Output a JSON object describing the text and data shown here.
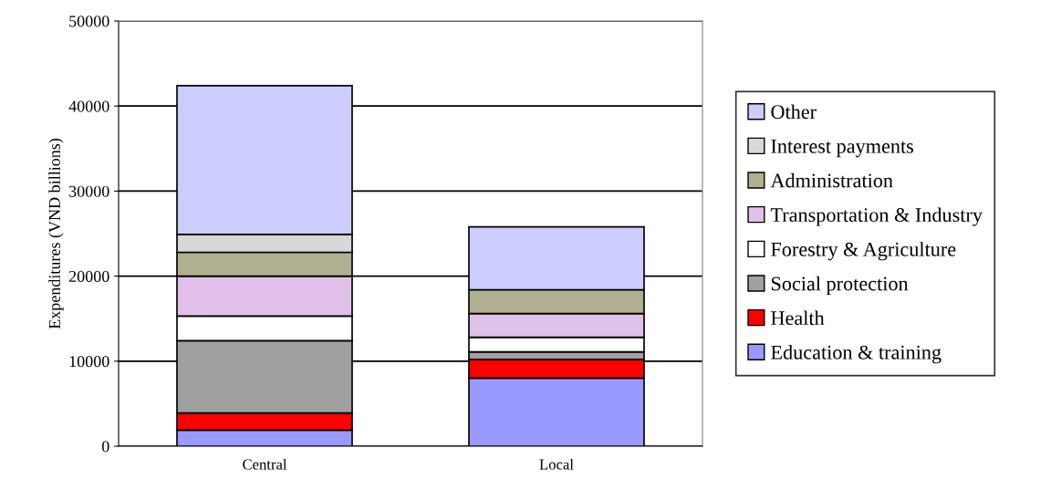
{
  "chart_data": {
    "type": "bar",
    "stacked": true,
    "ylabel": "Expenditures (VND billions)",
    "categories": [
      "Central",
      "Local"
    ],
    "series": [
      {
        "name": "Education & training",
        "color": "#9999ff",
        "values": [
          1900,
          8000
        ]
      },
      {
        "name": "Health",
        "color": "#ff0000",
        "values": [
          2000,
          2200
        ]
      },
      {
        "name": "Social protection",
        "color": "#a0a0a0",
        "values": [
          8500,
          900
        ]
      },
      {
        "name": "Forestry & Agriculture",
        "color": "#ffffff",
        "values": [
          2900,
          1700
        ]
      },
      {
        "name": "Transportation & Industry",
        "color": "#e0c0e8",
        "values": [
          4700,
          2800
        ]
      },
      {
        "name": "Administration",
        "color": "#b0b090",
        "values": [
          2800,
          2800
        ]
      },
      {
        "name": "Interest payments",
        "color": "#d8d8d8",
        "values": [
          2100,
          0
        ]
      },
      {
        "name": "Other",
        "color": "#ccccff",
        "values": [
          17500,
          7400
        ]
      }
    ],
    "ylim": [
      0,
      50000
    ],
    "yticks": [
      0,
      10000,
      20000,
      30000,
      40000,
      50000
    ],
    "grid": "y",
    "legend": "right"
  }
}
